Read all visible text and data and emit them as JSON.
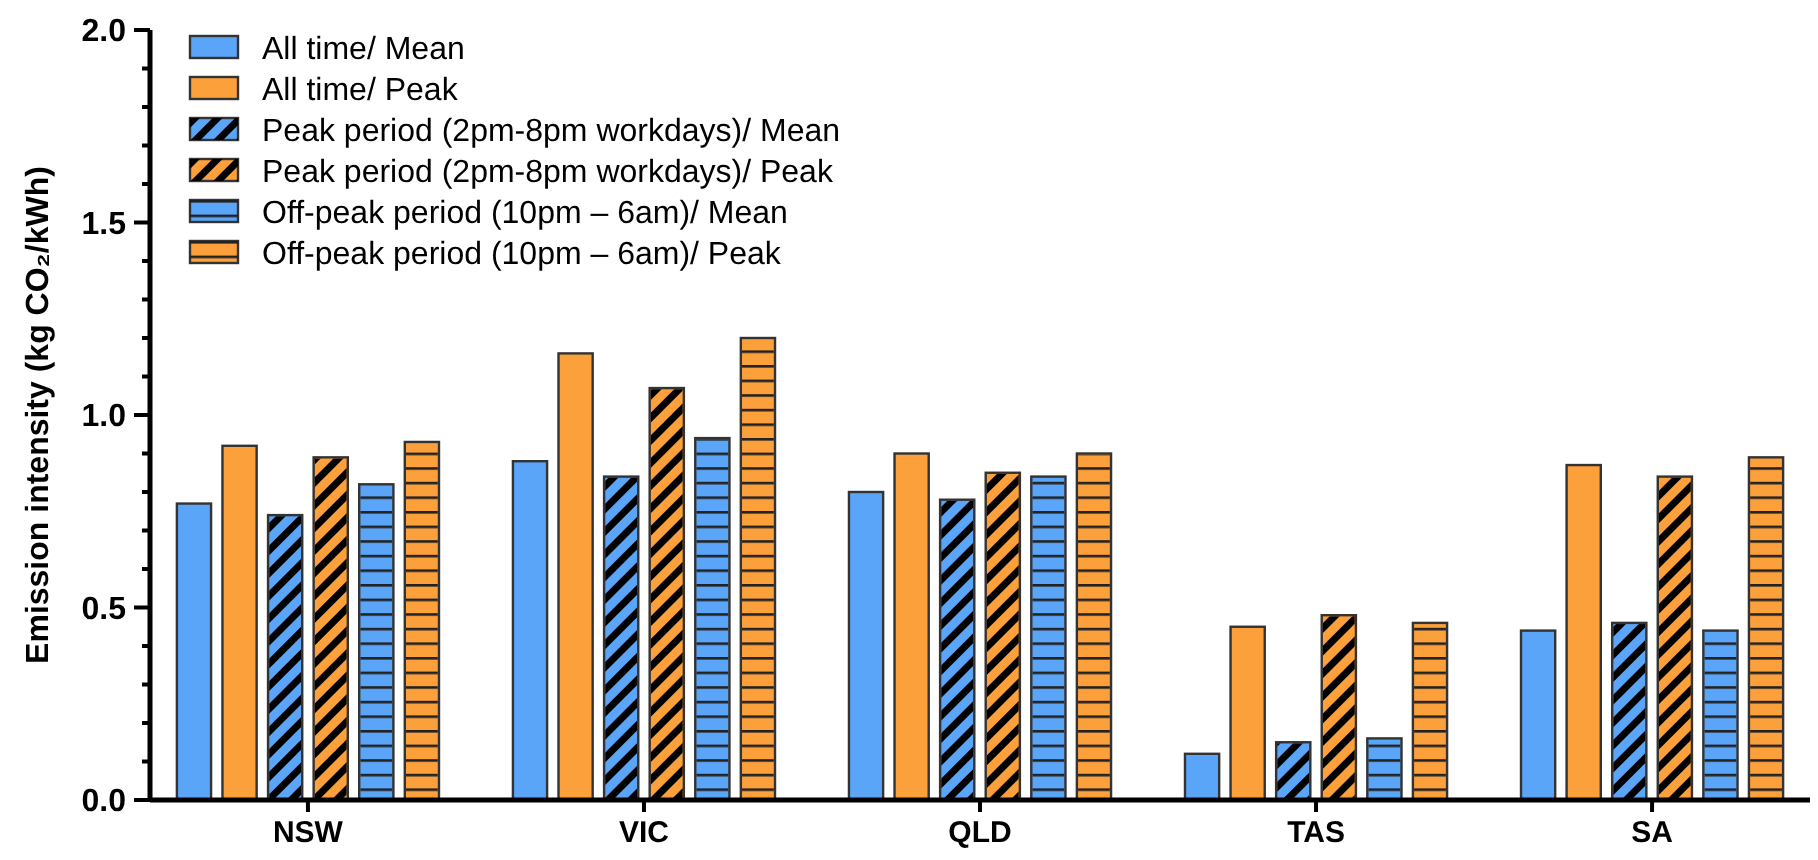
{
  "chart_data": {
    "type": "bar",
    "ylabel": "Emission intensity (kg CO₂/kWh)",
    "categories": [
      "NSW",
      "VIC",
      "QLD",
      "TAS",
      "SA"
    ],
    "series": [
      {
        "name": "All time/ Mean",
        "color": "#5aa5f8",
        "values": [
          0.77,
          0.88,
          0.8,
          0.12,
          0.44
        ]
      },
      {
        "name": "All time/ Peak",
        "color": "#fca03c",
        "values": [
          0.92,
          1.16,
          0.9,
          0.45,
          0.87
        ]
      },
      {
        "name": "Peak period (2pm-8pm workdays)/ Mean",
        "color": "#5aa5f8",
        "values": [
          0.74,
          0.84,
          0.78,
          0.15,
          0.46
        ]
      },
      {
        "name": "Peak period (2pm-8pm workdays)/ Peak",
        "color": "#fca03c",
        "values": [
          0.89,
          1.07,
          0.85,
          0.48,
          0.84
        ]
      },
      {
        "name": "Off-peak period (10pm – 6am)/ Mean",
        "color": "#5aa5f8",
        "values": [
          0.82,
          0.94,
          0.84,
          0.16,
          0.44
        ]
      },
      {
        "name": "Off-peak period (10pm – 6am)/ Peak",
        "color": "#fca03c",
        "values": [
          0.93,
          1.2,
          0.9,
          0.46,
          0.89
        ]
      }
    ],
    "ylim": [
      0,
      2.0
    ],
    "yticks": [
      {
        "value": 0,
        "label": "0.0"
      },
      {
        "value": 0.1,
        "label": null
      },
      {
        "value": 0.2,
        "label": null
      },
      {
        "value": 0.3,
        "label": null
      },
      {
        "value": 0.4,
        "label": null
      },
      {
        "value": 0.5,
        "label": "0.5"
      },
      {
        "value": 0.6,
        "label": null
      },
      {
        "value": 0.7,
        "label": null
      },
      {
        "value": 0.8,
        "label": null
      },
      {
        "value": 0.9,
        "label": null
      },
      {
        "value": 1.0,
        "label": "1.0"
      },
      {
        "value": 1.1,
        "label": null
      },
      {
        "value": 1.2,
        "label": null
      },
      {
        "value": 1.3,
        "label": null
      },
      {
        "value": 1.4,
        "label": null
      },
      {
        "value": 1.5,
        "label": "1.5"
      },
      {
        "value": 1.6,
        "label": null
      },
      {
        "value": 1.7,
        "label": null
      },
      {
        "value": 1.8,
        "label": null
      },
      {
        "value": 1.9,
        "label": null
      },
      {
        "value": 2.0,
        "label": "2.0"
      }
    ],
    "grid": false,
    "legend": "top left"
  }
}
